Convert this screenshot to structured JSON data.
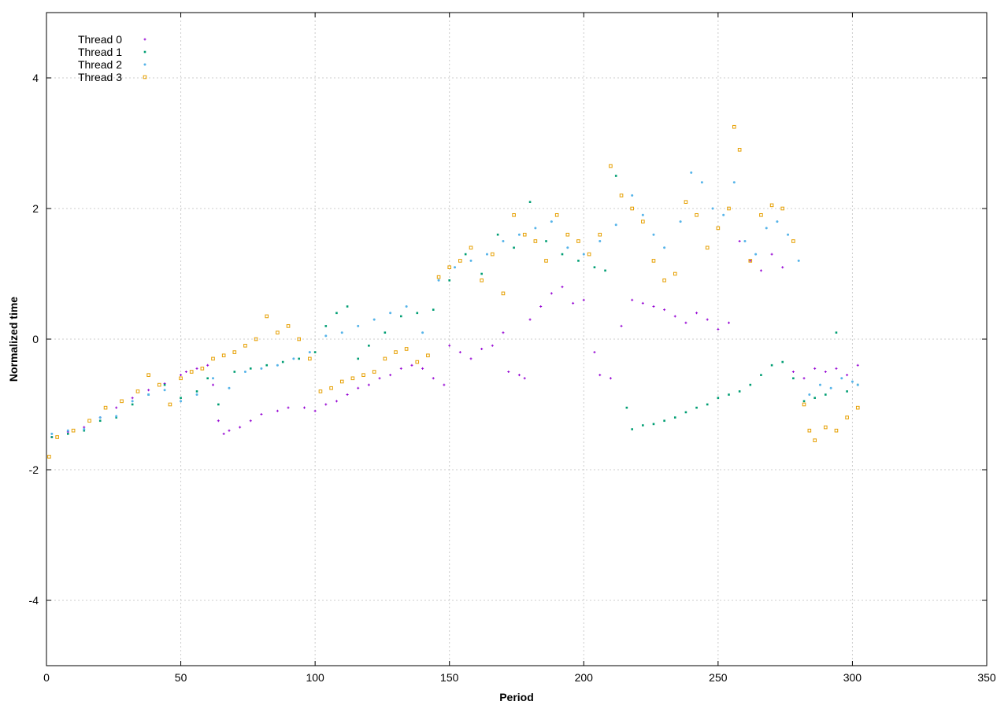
{
  "chart_data": {
    "type": "scatter",
    "xlabel": "Period",
    "ylabel": "Normalized time",
    "xlim": [
      0,
      350
    ],
    "ylim": [
      -5,
      5
    ],
    "x_ticks": [
      0,
      50,
      100,
      150,
      200,
      250,
      300,
      350
    ],
    "y_ticks": [
      -4,
      -2,
      0,
      2,
      4
    ],
    "x_tick_labels": [
      "0",
      "50",
      "100",
      "150",
      "200",
      "250",
      "300",
      "350"
    ],
    "y_tick_labels": [
      "-4",
      "-2",
      "0",
      "2",
      "4"
    ],
    "grid": true,
    "legend_position": "top-left",
    "series": [
      {
        "name": "Thread 0",
        "color": "#9400d3",
        "marker": "plus",
        "x": [
          2,
          8,
          14,
          20,
          26,
          32,
          38,
          44,
          50,
          52,
          56,
          60,
          62,
          64,
          66,
          68,
          72,
          76,
          80,
          86,
          90,
          96,
          100,
          104,
          108,
          112,
          116,
          120,
          124,
          128,
          132,
          136,
          140,
          144,
          148,
          150,
          154,
          158,
          162,
          166,
          170,
          172,
          176,
          178,
          180,
          184,
          188,
          192,
          196,
          200,
          204,
          206,
          210,
          214,
          218,
          222,
          226,
          230,
          234,
          238,
          242,
          246,
          250,
          254,
          258,
          262,
          266,
          270,
          274,
          278,
          282,
          286,
          290,
          294,
          298,
          302
        ],
        "y": [
          -1.5,
          -1.42,
          -1.35,
          -1.2,
          -1.05,
          -0.9,
          -0.78,
          -0.68,
          -0.55,
          -0.5,
          -0.45,
          -0.4,
          -0.7,
          -1.25,
          -1.45,
          -1.4,
          -1.35,
          -1.25,
          -1.15,
          -1.1,
          -1.05,
          -1.05,
          -1.1,
          -1.0,
          -0.95,
          -0.85,
          -0.75,
          -0.7,
          -0.6,
          -0.55,
          -0.45,
          -0.4,
          -0.45,
          -0.6,
          -0.7,
          -0.1,
          -0.2,
          -0.3,
          -0.15,
          -0.1,
          0.1,
          -0.5,
          -0.55,
          -0.6,
          0.3,
          0.5,
          0.7,
          0.8,
          0.55,
          0.6,
          -0.2,
          -0.55,
          -0.6,
          0.2,
          0.6,
          0.55,
          0.5,
          0.45,
          0.35,
          0.25,
          0.4,
          0.3,
          0.15,
          0.25,
          1.5,
          1.2,
          1.05,
          1.3,
          1.1,
          -0.5,
          -0.6,
          -0.45,
          -0.5,
          -0.45,
          -0.55,
          -0.4
        ]
      },
      {
        "name": "Thread 1",
        "color": "#009e73",
        "marker": "square-dot",
        "x": [
          2,
          8,
          14,
          20,
          26,
          32,
          38,
          44,
          50,
          56,
          60,
          64,
          70,
          76,
          82,
          88,
          94,
          100,
          104,
          108,
          112,
          116,
          120,
          126,
          132,
          138,
          144,
          150,
          156,
          162,
          168,
          174,
          180,
          186,
          192,
          198,
          204,
          208,
          212,
          216,
          218,
          222,
          226,
          230,
          234,
          238,
          242,
          246,
          250,
          254,
          258,
          262,
          266,
          270,
          274,
          278,
          282,
          286,
          290,
          294,
          298,
          302
        ],
        "y": [
          -1.5,
          -1.45,
          -1.4,
          -1.25,
          -1.2,
          -1.0,
          -0.85,
          -0.7,
          -0.9,
          -0.8,
          -0.6,
          -1.0,
          -0.5,
          -0.45,
          -0.4,
          -0.35,
          -0.3,
          -0.2,
          0.2,
          0.4,
          0.5,
          -0.3,
          -0.1,
          0.1,
          0.35,
          0.4,
          0.45,
          0.9,
          1.3,
          1.0,
          1.6,
          1.4,
          2.1,
          1.5,
          1.3,
          1.2,
          1.1,
          1.05,
          2.5,
          -1.05,
          -1.38,
          -1.32,
          -1.3,
          -1.25,
          -1.2,
          -1.12,
          -1.05,
          -1.0,
          -0.9,
          -0.85,
          -0.8,
          -0.7,
          -0.55,
          -0.4,
          -0.35,
          -0.6,
          -0.95,
          -0.9,
          -0.85,
          0.1,
          -0.8,
          -0.7
        ]
      },
      {
        "name": "Thread 2",
        "color": "#56b4e9",
        "marker": "circle-dot",
        "x": [
          2,
          8,
          14,
          20,
          26,
          32,
          38,
          44,
          50,
          56,
          62,
          68,
          74,
          80,
          86,
          92,
          98,
          104,
          110,
          116,
          122,
          128,
          134,
          140,
          146,
          152,
          158,
          164,
          170,
          176,
          182,
          188,
          194,
          200,
          206,
          212,
          218,
          222,
          226,
          230,
          236,
          240,
          244,
          248,
          252,
          256,
          260,
          264,
          268,
          272,
          276,
          280,
          284,
          288,
          292,
          296,
          300,
          302
        ],
        "y": [
          -1.45,
          -1.4,
          -1.38,
          -1.2,
          -1.18,
          -0.95,
          -0.85,
          -0.78,
          -0.95,
          -0.85,
          -0.6,
          -0.75,
          -0.5,
          -0.45,
          -0.4,
          -0.3,
          -0.2,
          0.05,
          0.1,
          0.2,
          0.3,
          0.4,
          0.5,
          0.1,
          0.9,
          1.1,
          1.2,
          1.3,
          1.5,
          1.6,
          1.7,
          1.8,
          1.4,
          1.3,
          1.5,
          1.75,
          2.2,
          1.9,
          1.6,
          1.4,
          1.8,
          2.55,
          2.4,
          2.0,
          1.9,
          2.4,
          1.5,
          1.3,
          1.7,
          1.8,
          1.6,
          1.2,
          -0.85,
          -0.7,
          -0.75,
          -0.6,
          -0.65,
          -0.7
        ]
      },
      {
        "name": "Thread 3",
        "color": "#e69f00",
        "marker": "square",
        "x": [
          1,
          4,
          10,
          16,
          22,
          28,
          34,
          38,
          42,
          46,
          50,
          54,
          58,
          62,
          66,
          70,
          74,
          78,
          82,
          86,
          90,
          94,
          98,
          102,
          106,
          110,
          114,
          118,
          122,
          126,
          130,
          134,
          138,
          142,
          146,
          150,
          154,
          158,
          162,
          166,
          170,
          174,
          178,
          182,
          186,
          190,
          194,
          198,
          202,
          206,
          210,
          214,
          218,
          222,
          226,
          230,
          234,
          238,
          242,
          246,
          250,
          254,
          256,
          258,
          262,
          266,
          270,
          274,
          278,
          282,
          284,
          286,
          290,
          294,
          298,
          302
        ],
        "y": [
          -1.8,
          -1.5,
          -1.4,
          -1.25,
          -1.05,
          -0.95,
          -0.8,
          -0.55,
          -0.7,
          -1.0,
          -0.6,
          -0.5,
          -0.45,
          -0.3,
          -0.25,
          -0.2,
          -0.1,
          0.0,
          0.35,
          0.1,
          0.2,
          0.0,
          -0.3,
          -0.8,
          -0.75,
          -0.65,
          -0.6,
          -0.55,
          -0.5,
          -0.3,
          -0.2,
          -0.15,
          -0.35,
          -0.25,
          0.95,
          1.1,
          1.2,
          1.4,
          0.9,
          1.3,
          0.7,
          1.9,
          1.6,
          1.5,
          1.2,
          1.9,
          1.6,
          1.5,
          1.3,
          1.6,
          2.65,
          2.2,
          2.0,
          1.8,
          1.2,
          0.9,
          1.0,
          2.1,
          1.9,
          1.4,
          1.7,
          2.0,
          3.25,
          2.9,
          1.2,
          1.9,
          2.05,
          2.0,
          1.5,
          -1.0,
          -1.4,
          -1.55,
          -1.35,
          -1.4,
          -1.2,
          -1.05
        ]
      }
    ]
  }
}
